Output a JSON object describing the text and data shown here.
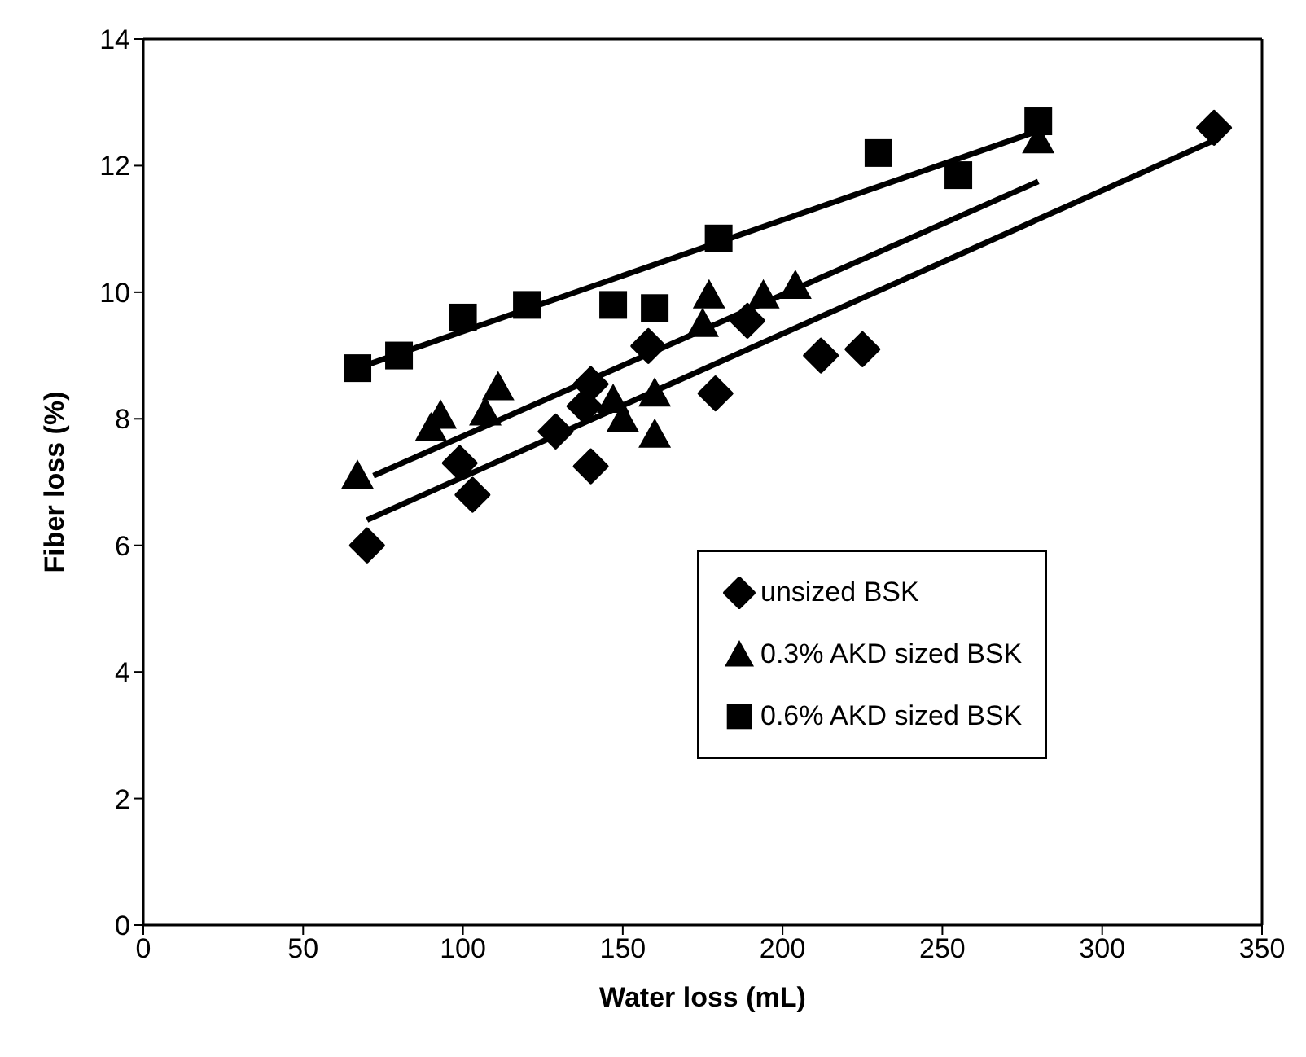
{
  "chart_data": {
    "type": "scatter",
    "xlabel": "Water loss (mL)",
    "ylabel": "Fiber loss (%)",
    "xlim": [
      0,
      350
    ],
    "xticks": [
      0,
      50,
      100,
      150,
      200,
      250,
      300,
      350
    ],
    "ylim": [
      0,
      14
    ],
    "yticks": [
      0,
      2,
      4,
      6,
      8,
      10,
      12,
      14
    ],
    "grid": false,
    "legend": "bottom right",
    "series": [
      {
        "name": "unsized BSK",
        "color": "#000000",
        "marker": "diamond",
        "x": [
          70,
          99,
          103,
          129,
          138,
          140,
          140,
          158,
          179,
          189,
          212,
          225,
          335
        ],
        "values": [
          6.0,
          7.3,
          6.8,
          7.8,
          8.2,
          8.55,
          7.25,
          9.15,
          8.4,
          9.55,
          9.0,
          9.1,
          12.6
        ]
      },
      {
        "name": "0.3% AKD sized BSK",
        "color": "#000000",
        "marker": "triangle",
        "x": [
          67,
          90,
          93,
          107,
          111,
          147,
          150,
          160,
          160,
          175,
          177,
          194,
          204,
          280
        ],
        "values": [
          7.1,
          7.85,
          8.05,
          8.1,
          8.5,
          8.3,
          8.0,
          8.4,
          7.75,
          9.5,
          9.95,
          9.95,
          10.1,
          12.4
        ]
      },
      {
        "name": "0.6% AKD sized BSK",
        "color": "#000000",
        "marker": "square",
        "x": [
          67,
          80,
          100,
          120,
          147,
          160,
          180,
          230,
          255,
          280
        ],
        "values": [
          8.8,
          9.0,
          9.6,
          9.8,
          9.8,
          9.75,
          10.85,
          12.2,
          11.85,
          12.7
        ]
      },
      {
        "type": "line",
        "color": "#000000",
        "marker": "none",
        "x": [
          70,
          335
        ],
        "values": [
          6.4,
          12.4
        ]
      },
      {
        "type": "line",
        "color": "#000000",
        "marker": "none",
        "x": [
          72,
          280
        ],
        "values": [
          7.1,
          11.75
        ]
      },
      {
        "type": "line",
        "color": "#000000",
        "marker": "none",
        "x": [
          67,
          280
        ],
        "values": [
          8.8,
          12.55
        ]
      }
    ]
  }
}
